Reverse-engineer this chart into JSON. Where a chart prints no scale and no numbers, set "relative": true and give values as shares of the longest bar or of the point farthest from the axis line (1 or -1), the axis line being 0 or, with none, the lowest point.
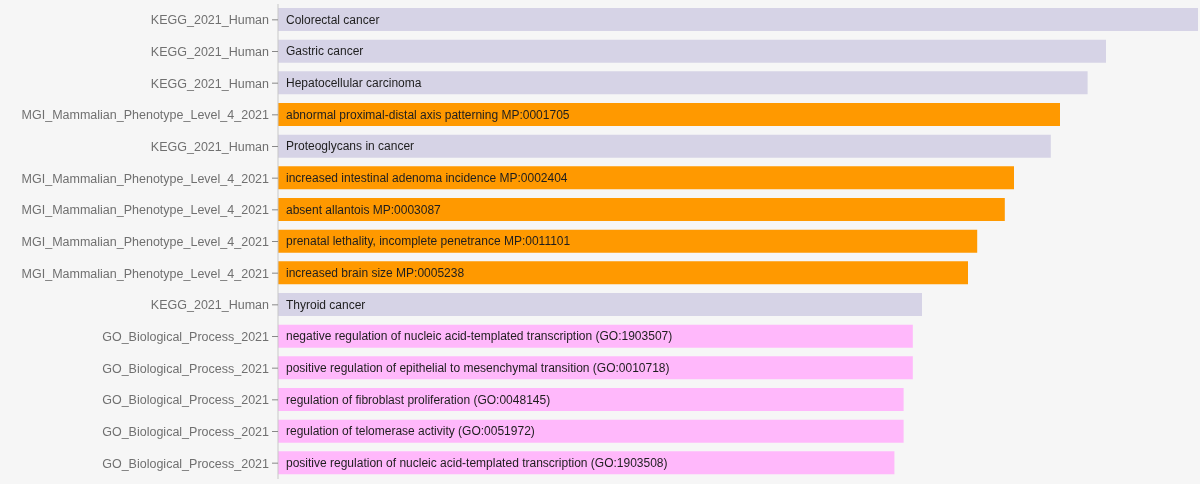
{
  "chart_data": {
    "type": "bar",
    "orientation": "horizontal",
    "relative": true,
    "categories": [
      "KEGG_2021_Human",
      "KEGG_2021_Human",
      "KEGG_2021_Human",
      "MGI_Mammalian_Phenotype_Level_4_2021",
      "KEGG_2021_Human",
      "MGI_Mammalian_Phenotype_Level_4_2021",
      "MGI_Mammalian_Phenotype_Level_4_2021",
      "MGI_Mammalian_Phenotype_Level_4_2021",
      "MGI_Mammalian_Phenotype_Level_4_2021",
      "KEGG_2021_Human",
      "GO_Biological_Process_2021",
      "GO_Biological_Process_2021",
      "GO_Biological_Process_2021",
      "GO_Biological_Process_2021",
      "GO_Biological_Process_2021"
    ],
    "values": [
      1,
      0.9,
      0.88,
      0.85,
      0.84,
      0.8,
      0.79,
      0.76,
      0.75,
      0.7,
      0.69,
      0.69,
      0.68,
      0.68,
      0.67
    ],
    "colors": [
      "#d6d3e6",
      "#d6d3e6",
      "#d6d3e6",
      "#ff9900",
      "#d6d3e6",
      "#ff9900",
      "#ff9900",
      "#ff9900",
      "#ff9900",
      "#d6d3e6",
      "#ffb8fb",
      "#ffb8fb",
      "#ffb8fb",
      "#ffb8fb",
      "#ffb8fb"
    ],
    "annotations": [
      "Colorectal cancer",
      "Gastric cancer",
      "Hepatocellular carcinoma",
      "abnormal proximal-distal axis patterning MP:0001705",
      "Proteoglycans in cancer",
      "increased intestinal adenoma incidence MP:0002404",
      "absent allantois MP:0003087",
      "prenatal lethality, incomplete penetrance MP:0011101",
      "increased brain size MP:0005238",
      "Thyroid cancer",
      "negative regulation of nucleic acid-templated transcription (GO:1903507)",
      "positive regulation of epithelial to mesenchymal transition (GO:0010718)",
      "regulation of fibroblast proliferation (GO:0048145)",
      "regulation of telomerase activity (GO:0051972)",
      "positive regulation of nucleic acid-templated transcription (GO:1903508)"
    ]
  }
}
